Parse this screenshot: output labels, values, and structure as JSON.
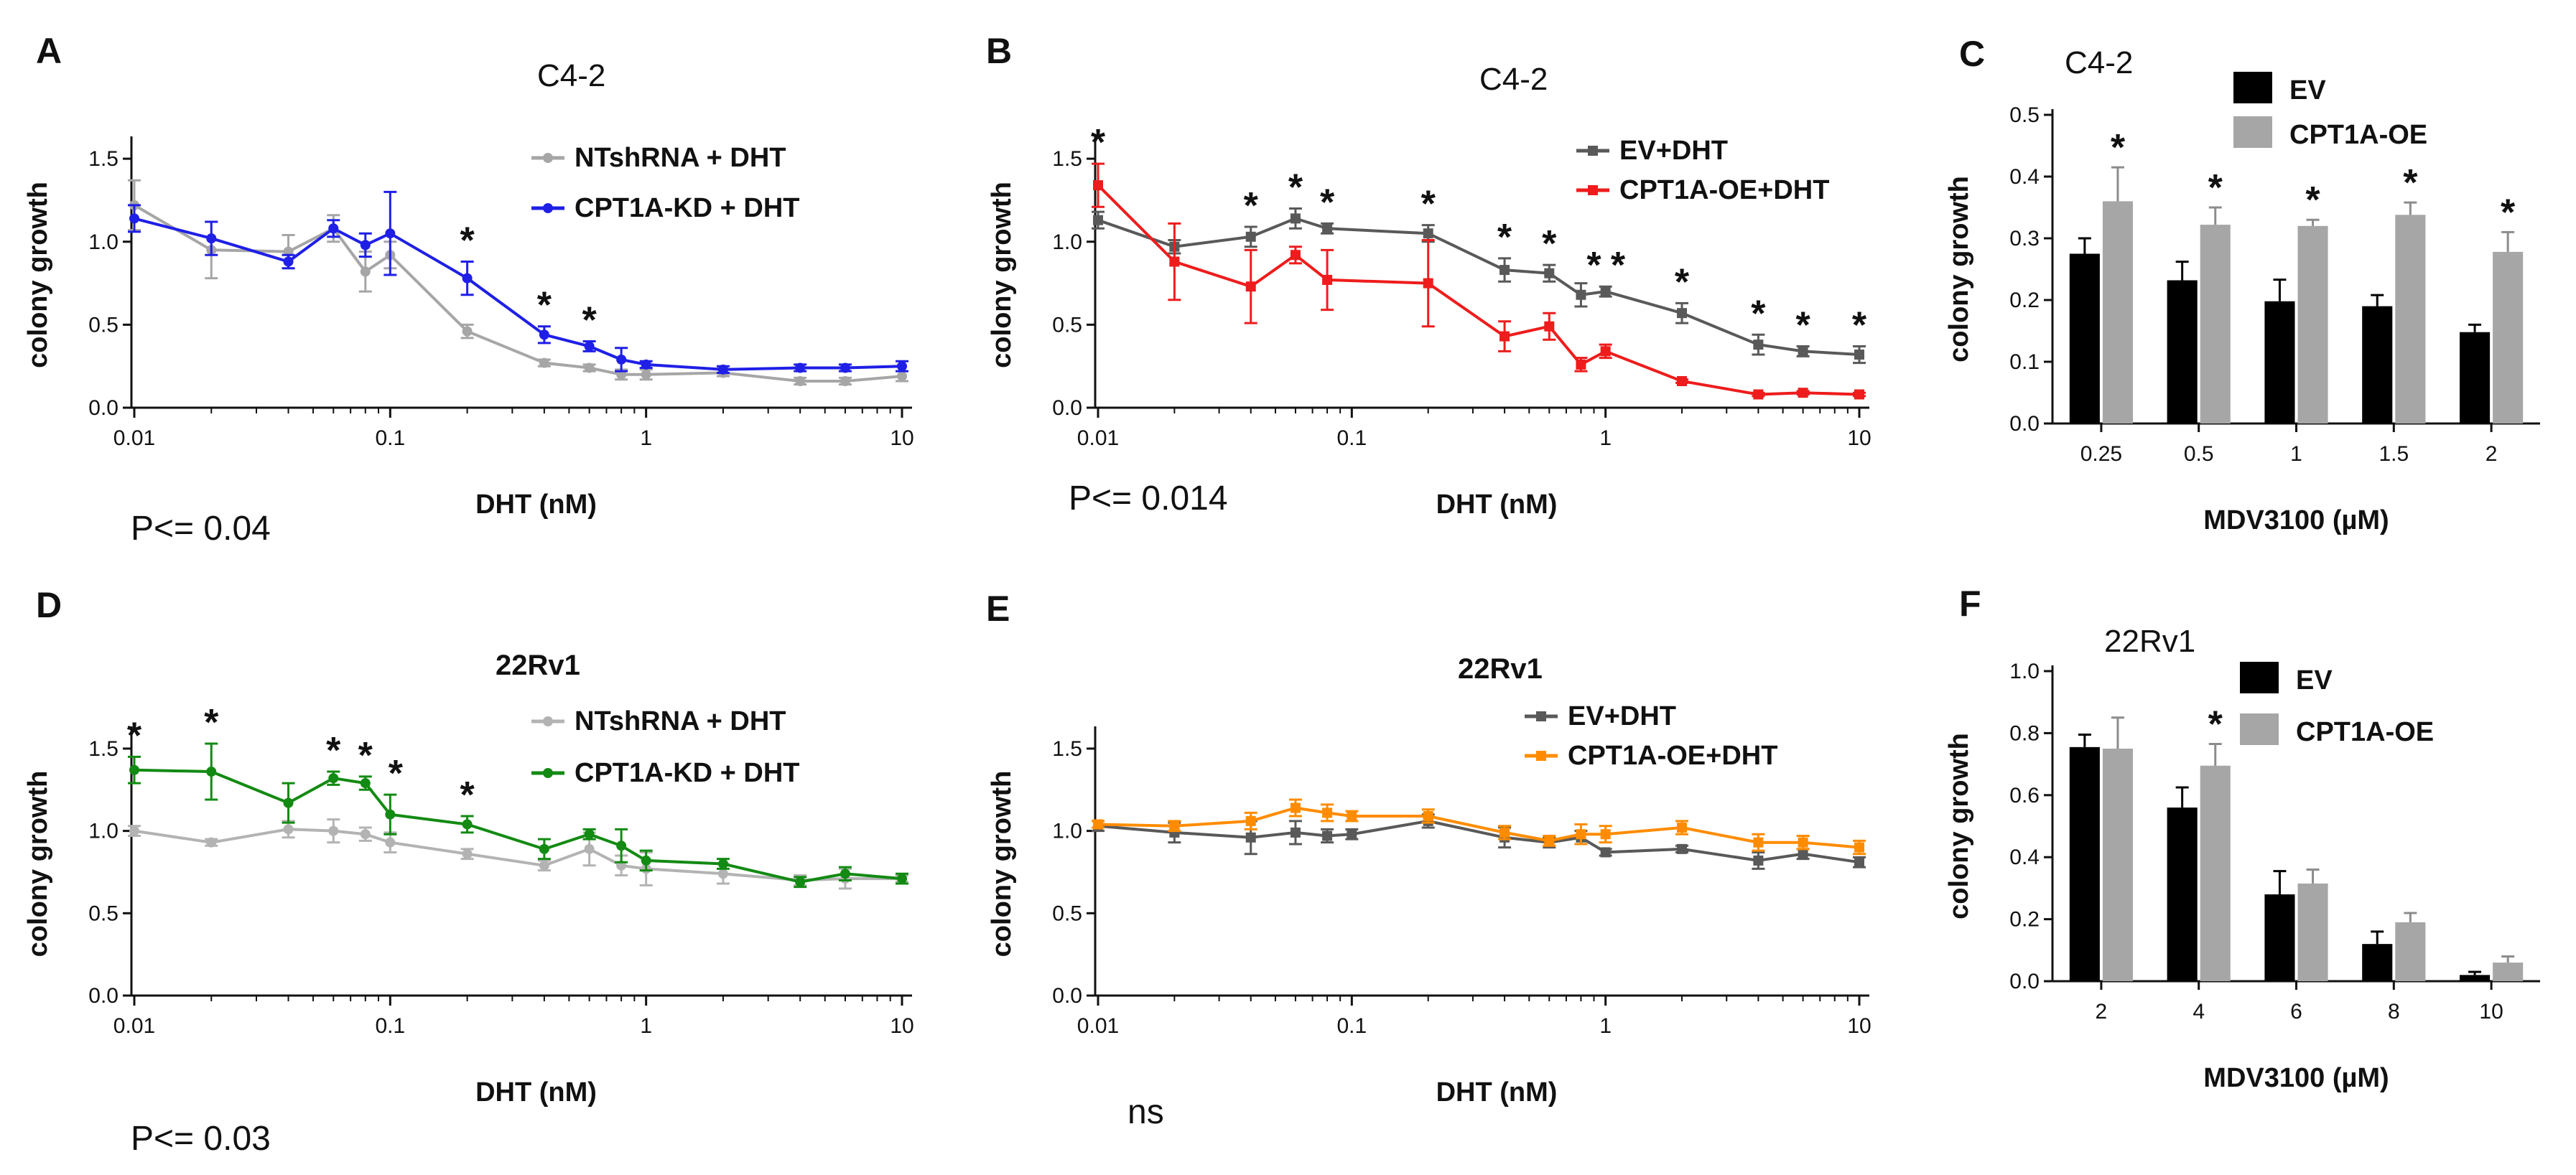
{
  "figure": {
    "panels": [
      {
        "letter": "A",
        "title": "C4-2",
        "note": "P<= 0.04"
      },
      {
        "letter": "B",
        "title": "C4-2",
        "note": "P<= 0.014"
      },
      {
        "letter": "C",
        "title": "C4-2",
        "note": ""
      },
      {
        "letter": "D",
        "title": "22Rv1",
        "note": "P<= 0.03"
      },
      {
        "letter": "E",
        "title": "22Rv1",
        "note": "ns"
      },
      {
        "letter": "F",
        "title": "22Rv1",
        "note": ""
      }
    ]
  },
  "chart_data": [
    {
      "panel": "A",
      "type": "line",
      "title": "C4-2",
      "xlabel": "DHT (nM)",
      "ylabel": "colony growth",
      "xscale": "log",
      "xlim": [
        0.01,
        10
      ],
      "ylim": [
        0,
        1.6
      ],
      "xticks": [
        0.01,
        0.1,
        1,
        10
      ],
      "xtick_labels": [
        "0.01",
        "0.1",
        "1",
        "10"
      ],
      "yticks": [
        0,
        0.5,
        1,
        1.5
      ],
      "ytick_labels": [
        "0.0",
        "0.5",
        "1.0",
        "1.5"
      ],
      "legend_position": "top-right",
      "series": [
        {
          "name": "NTshRNA + DHT",
          "color": "#a6a6a6",
          "marker": "circle",
          "x": [
            0.01,
            0.02,
            0.04,
            0.06,
            0.08,
            0.1,
            0.2,
            0.4,
            0.6,
            0.8,
            1,
            2,
            4,
            6,
            10
          ],
          "y": [
            1.22,
            0.95,
            0.94,
            1.08,
            0.82,
            0.92,
            0.46,
            0.27,
            0.24,
            0.2,
            0.2,
            0.21,
            0.16,
            0.16,
            0.19
          ],
          "err": [
            0.15,
            0.17,
            0.1,
            0.08,
            0.12,
            0.08,
            0.04,
            0.02,
            0.02,
            0.03,
            0.03,
            0.02,
            0.02,
            0.02,
            0.03
          ]
        },
        {
          "name": "CPT1A-KD + DHT",
          "color": "#1f1fe6",
          "marker": "circle",
          "x": [
            0.01,
            0.02,
            0.04,
            0.06,
            0.08,
            0.1,
            0.2,
            0.4,
            0.6,
            0.8,
            1,
            2,
            4,
            6,
            10
          ],
          "y": [
            1.14,
            1.02,
            0.88,
            1.08,
            0.98,
            1.05,
            0.78,
            0.44,
            0.37,
            0.29,
            0.26,
            0.23,
            0.24,
            0.24,
            0.25
          ],
          "err": [
            0.08,
            0.1,
            0.04,
            0.05,
            0.07,
            0.25,
            0.1,
            0.05,
            0.03,
            0.07,
            0.02,
            0.02,
            0.02,
            0.02,
            0.03
          ]
        }
      ],
      "annotations": [
        {
          "text": "*",
          "x": 0.2
        },
        {
          "text": "*",
          "x": 0.4
        },
        {
          "text": "*",
          "x": 0.6
        }
      ]
    },
    {
      "panel": "B",
      "type": "line",
      "title": "C4-2",
      "xlabel": "DHT (nM)",
      "ylabel": "colony growth",
      "xscale": "log",
      "xlim": [
        0.01,
        10
      ],
      "ylim": [
        0,
        1.6
      ],
      "xticks": [
        0.01,
        0.1,
        1,
        10
      ],
      "xtick_labels": [
        "0.01",
        "0.1",
        "1",
        "10"
      ],
      "yticks": [
        0,
        0.5,
        1,
        1.5
      ],
      "ytick_labels": [
        "0.0",
        "0.5",
        "1.0",
        "1.5"
      ],
      "legend_position": "top-right",
      "series": [
        {
          "name": "EV+DHT",
          "color": "#595959",
          "marker": "square",
          "x": [
            0.01,
            0.02,
            0.04,
            0.06,
            0.08,
            0.2,
            0.4,
            0.6,
            0.8,
            1,
            2,
            4,
            6,
            10
          ],
          "y": [
            1.13,
            0.97,
            1.03,
            1.14,
            1.08,
            1.05,
            0.83,
            0.81,
            0.68,
            0.7,
            0.57,
            0.38,
            0.34,
            0.32
          ],
          "err": [
            0.05,
            0.04,
            0.06,
            0.06,
            0.03,
            0.05,
            0.07,
            0.05,
            0.07,
            0.03,
            0.06,
            0.06,
            0.03,
            0.05
          ]
        },
        {
          "name": "CPT1A-OE+DHT",
          "color": "#ee1c1c",
          "marker": "square",
          "x": [
            0.01,
            0.02,
            0.04,
            0.06,
            0.08,
            0.2,
            0.4,
            0.6,
            0.8,
            1,
            2,
            4,
            6,
            10
          ],
          "y": [
            1.34,
            0.88,
            0.73,
            0.92,
            0.77,
            0.75,
            0.43,
            0.49,
            0.26,
            0.34,
            0.16,
            0.08,
            0.09,
            0.08
          ],
          "err": [
            0.13,
            0.23,
            0.22,
            0.05,
            0.18,
            0.26,
            0.09,
            0.08,
            0.04,
            0.04,
            0.01,
            0.01,
            0.01,
            0.01
          ]
        }
      ],
      "annotations": [
        {
          "text": "*",
          "x": 0.01
        },
        {
          "text": "*",
          "x": 0.04
        },
        {
          "text": "*",
          "x": 0.06
        },
        {
          "text": "*",
          "x": 0.08
        },
        {
          "text": "*",
          "x": 0.2
        },
        {
          "text": "*",
          "x": 0.4
        },
        {
          "text": "*",
          "x": 0.6
        },
        {
          "text": "*",
          "x": 0.9
        },
        {
          "text": "*",
          "x": 1.12
        },
        {
          "text": "*",
          "x": 2
        },
        {
          "text": "*",
          "x": 4
        },
        {
          "text": "*",
          "x": 6
        },
        {
          "text": "*",
          "x": 10
        }
      ]
    },
    {
      "panel": "C",
      "type": "bar",
      "title": "C4-2",
      "xlabel": "MDV3100 (µM)",
      "ylabel": "colony growth",
      "ylim": [
        0,
        0.5
      ],
      "yticks": [
        0,
        0.1,
        0.2,
        0.3,
        0.4,
        0.5
      ],
      "ytick_labels": [
        "0.0",
        "0.1",
        "0.2",
        "0.3",
        "0.4",
        "0.5"
      ],
      "categories": [
        "0.25",
        "0.5",
        "1",
        "1.5",
        "2"
      ],
      "legend_position": "top-right",
      "series": [
        {
          "name": "EV",
          "color": "#000000",
          "values": [
            0.275,
            0.232,
            0.198,
            0.19,
            0.148
          ],
          "err": [
            0.025,
            0.03,
            0.035,
            0.018,
            0.012
          ]
        },
        {
          "name": "CPT1A-OE",
          "color": "#a6a6a6",
          "values": [
            0.36,
            0.322,
            0.32,
            0.338,
            0.278
          ],
          "err": [
            0.055,
            0.028,
            0.01,
            0.02,
            0.032
          ]
        }
      ],
      "annotations": [
        {
          "text": "*",
          "category": "0.25"
        },
        {
          "text": "*",
          "category": "0.5"
        },
        {
          "text": "*",
          "category": "1"
        },
        {
          "text": "*",
          "category": "1.5"
        },
        {
          "text": "*",
          "category": "2"
        }
      ]
    },
    {
      "panel": "D",
      "type": "line",
      "title": "22Rv1",
      "xlabel": "DHT (nM)",
      "ylabel": "colony growth",
      "xscale": "log",
      "xlim": [
        0.01,
        10
      ],
      "ylim": [
        0,
        1.6
      ],
      "xticks": [
        0.01,
        0.1,
        1,
        10
      ],
      "xtick_labels": [
        "0.01",
        "0.1",
        "1",
        "10"
      ],
      "yticks": [
        0,
        0.5,
        1,
        1.5
      ],
      "ytick_labels": [
        "0.0",
        "0.5",
        "1.0",
        "1.5"
      ],
      "legend_position": "top-right",
      "series": [
        {
          "name": "NTshRNA + DHT",
          "color": "#b3b3b3",
          "marker": "circle",
          "x": [
            0.01,
            0.02,
            0.04,
            0.06,
            0.08,
            0.1,
            0.2,
            0.4,
            0.6,
            0.8,
            1,
            2,
            4,
            6,
            10
          ],
          "y": [
            1.0,
            0.93,
            1.01,
            1.0,
            0.98,
            0.93,
            0.86,
            0.79,
            0.89,
            0.79,
            0.77,
            0.74,
            0.7,
            0.71,
            0.71
          ],
          "err": [
            0.03,
            0.02,
            0.05,
            0.07,
            0.04,
            0.06,
            0.03,
            0.03,
            0.1,
            0.06,
            0.1,
            0.06,
            0.03,
            0.06,
            0.02
          ]
        },
        {
          "name": "CPT1A-KD + DHT",
          "color": "#138a13",
          "marker": "circle",
          "x": [
            0.01,
            0.02,
            0.04,
            0.06,
            0.08,
            0.1,
            0.2,
            0.4,
            0.6,
            0.8,
            1,
            2,
            4,
            6,
            10
          ],
          "y": [
            1.37,
            1.36,
            1.17,
            1.32,
            1.29,
            1.1,
            1.04,
            0.89,
            0.98,
            0.91,
            0.82,
            0.8,
            0.69,
            0.74,
            0.71
          ],
          "err": [
            0.08,
            0.17,
            0.12,
            0.04,
            0.04,
            0.12,
            0.05,
            0.06,
            0.03,
            0.1,
            0.06,
            0.03,
            0.03,
            0.04,
            0.03
          ]
        }
      ],
      "annotations": [
        {
          "text": "*",
          "x": 0.01
        },
        {
          "text": "*",
          "x": 0.02
        },
        {
          "text": "*",
          "x": 0.06
        },
        {
          "text": "*",
          "x": 0.08
        },
        {
          "text": "*",
          "x": 0.105
        },
        {
          "text": "*",
          "x": 0.2
        }
      ]
    },
    {
      "panel": "E",
      "type": "line",
      "title": "22Rv1",
      "xlabel": "DHT (nM)",
      "ylabel": "colony growth",
      "xscale": "log",
      "xlim": [
        0.01,
        10
      ],
      "ylim": [
        0,
        1.6
      ],
      "xticks": [
        0.01,
        0.1,
        1,
        10
      ],
      "xtick_labels": [
        "0.01",
        "0.1",
        "1",
        "10"
      ],
      "yticks": [
        0,
        0.5,
        1,
        1.5
      ],
      "ytick_labels": [
        "0.0",
        "0.5",
        "1.0",
        "1.5"
      ],
      "legend_position": "top-right",
      "series": [
        {
          "name": "EV+DHT",
          "color": "#595959",
          "marker": "square",
          "x": [
            0.01,
            0.02,
            0.04,
            0.06,
            0.08,
            0.1,
            0.2,
            0.4,
            0.6,
            0.8,
            1,
            2,
            4,
            6,
            10
          ],
          "y": [
            1.03,
            0.99,
            0.96,
            0.99,
            0.97,
            0.98,
            1.06,
            0.96,
            0.93,
            0.96,
            0.87,
            0.89,
            0.82,
            0.86,
            0.81
          ],
          "err": [
            0.03,
            0.06,
            0.1,
            0.07,
            0.04,
            0.03,
            0.04,
            0.06,
            0.03,
            0.04,
            0.02,
            0.02,
            0.05,
            0.03,
            0.03
          ]
        },
        {
          "name": "CPT1A-OE+DHT",
          "color": "#ff8c00",
          "marker": "square",
          "x": [
            0.01,
            0.02,
            0.04,
            0.06,
            0.08,
            0.1,
            0.2,
            0.4,
            0.6,
            0.8,
            1,
            2,
            4,
            6,
            10
          ],
          "y": [
            1.04,
            1.03,
            1.06,
            1.14,
            1.11,
            1.09,
            1.09,
            0.99,
            0.94,
            0.98,
            0.98,
            1.02,
            0.93,
            0.93,
            0.9
          ],
          "err": [
            0.02,
            0.03,
            0.05,
            0.05,
            0.05,
            0.03,
            0.04,
            0.04,
            0.03,
            0.06,
            0.05,
            0.04,
            0.05,
            0.04,
            0.04
          ]
        }
      ],
      "annotations": []
    },
    {
      "panel": "F",
      "type": "bar",
      "title": "22Rv1",
      "xlabel": "MDV3100 (µM)",
      "ylabel": "colony growth",
      "ylim": [
        0,
        1.0
      ],
      "yticks": [
        0,
        0.2,
        0.4,
        0.6,
        0.8,
        1.0
      ],
      "ytick_labels": [
        "0.0",
        "0.2",
        "0.4",
        "0.6",
        "0.8",
        "1.0"
      ],
      "categories": [
        "2",
        "4",
        "6",
        "8",
        "10"
      ],
      "legend_position": "top-right",
      "series": [
        {
          "name": "EV",
          "color": "#000000",
          "values": [
            0.755,
            0.56,
            0.28,
            0.12,
            0.02
          ],
          "err": [
            0.04,
            0.065,
            0.075,
            0.04,
            0.01
          ]
        },
        {
          "name": "CPT1A-OE",
          "color": "#a6a6a6",
          "values": [
            0.75,
            0.695,
            0.315,
            0.19,
            0.06
          ],
          "err": [
            0.1,
            0.07,
            0.045,
            0.03,
            0.02
          ]
        }
      ],
      "annotations": [
        {
          "text": "*",
          "category": "4"
        }
      ]
    }
  ]
}
